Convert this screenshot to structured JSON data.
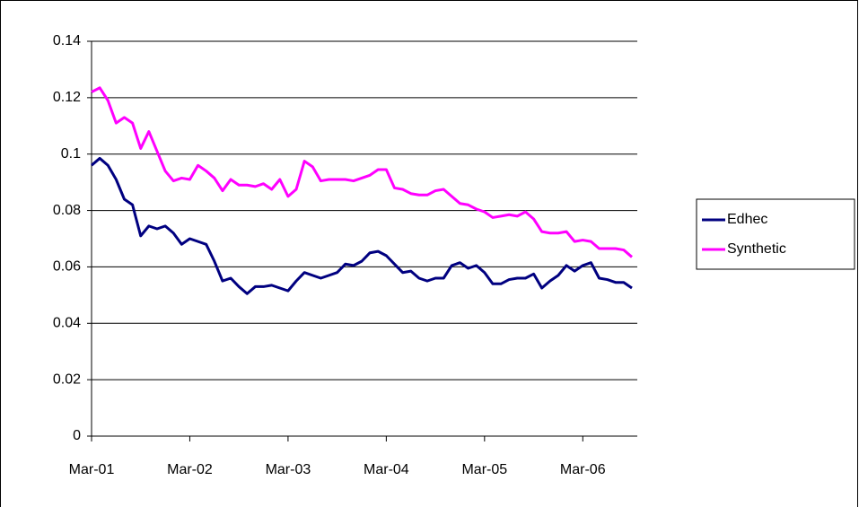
{
  "chart_data": {
    "type": "line",
    "categories": [
      "Mar-01",
      null,
      null,
      null,
      null,
      null,
      null,
      null,
      null,
      null,
      null,
      null,
      "Mar-02",
      null,
      null,
      null,
      null,
      null,
      null,
      null,
      null,
      null,
      null,
      null,
      "Mar-03",
      null,
      null,
      null,
      null,
      null,
      null,
      null,
      null,
      null,
      null,
      null,
      "Mar-04",
      null,
      null,
      null,
      null,
      null,
      null,
      null,
      null,
      null,
      null,
      null,
      "Mar-05",
      null,
      null,
      null,
      null,
      null,
      null,
      null,
      null,
      null,
      null,
      null,
      "Mar-06",
      null,
      null,
      null,
      null,
      null,
      null
    ],
    "series": [
      {
        "name": "Edhec",
        "color": "#000080",
        "values": [
          0.096,
          0.0985,
          0.096,
          0.091,
          0.084,
          0.082,
          0.071,
          0.0745,
          0.0735,
          0.0745,
          0.072,
          0.068,
          0.07,
          0.069,
          0.068,
          0.062,
          0.055,
          0.056,
          0.053,
          0.0505,
          0.053,
          0.053,
          0.0535,
          0.0525,
          0.0515,
          0.055,
          0.058,
          0.057,
          0.056,
          0.057,
          0.058,
          0.061,
          0.0605,
          0.062,
          0.065,
          0.0655,
          0.064,
          0.061,
          0.058,
          0.0585,
          0.056,
          0.055,
          0.056,
          0.056,
          0.0605,
          0.0615,
          0.0595,
          0.0605,
          0.058,
          0.054,
          0.054,
          0.0555,
          0.056,
          0.056,
          0.0575,
          0.0525,
          0.055,
          0.057,
          0.0605,
          0.0585,
          0.0605,
          0.0615,
          0.056,
          0.0555,
          0.0545,
          0.0545,
          0.0525
        ]
      },
      {
        "name": "Synthetic",
        "color": "#ff00ff",
        "values": [
          0.122,
          0.1235,
          0.119,
          0.111,
          0.113,
          0.111,
          0.102,
          0.108,
          0.101,
          0.094,
          0.0905,
          0.0915,
          0.091,
          0.096,
          0.094,
          0.0915,
          0.087,
          0.091,
          0.089,
          0.089,
          0.0885,
          0.0895,
          0.0875,
          0.091,
          0.085,
          0.0875,
          0.0975,
          0.0955,
          0.0905,
          0.091,
          0.091,
          0.091,
          0.0905,
          0.0915,
          0.0925,
          0.0945,
          0.0945,
          0.088,
          0.0875,
          0.086,
          0.0855,
          0.0855,
          0.087,
          0.0875,
          0.085,
          0.0825,
          0.082,
          0.0805,
          0.0795,
          0.0775,
          0.078,
          0.0785,
          0.078,
          0.0795,
          0.077,
          0.0725,
          0.072,
          0.072,
          0.0725,
          0.069,
          0.0695,
          0.069,
          0.0665,
          0.0665,
          0.0665,
          0.066,
          0.0635
        ]
      }
    ],
    "ylim": [
      0,
      0.14
    ],
    "yticks": [
      0,
      0.02,
      0.04,
      0.06,
      0.08,
      0.1,
      0.12,
      0.14
    ],
    "grid": true,
    "legend": "right"
  }
}
